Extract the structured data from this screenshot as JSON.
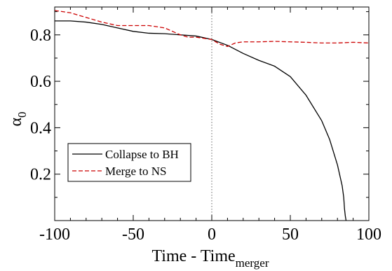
{
  "chart_data": {
    "type": "line",
    "title": "",
    "xlabel": "Time - Time",
    "xlabel_subscript": "merger",
    "ylabel": "α",
    "ylabel_subscript": "0",
    "xlim": [
      -100,
      100
    ],
    "ylim": [
      0,
      0.92
    ],
    "xticks": [
      -100,
      -50,
      0,
      50,
      100
    ],
    "xtick_labels": [
      "-100",
      "-50",
      "0",
      "50",
      "100"
    ],
    "yticks": [
      0.2,
      0.4,
      0.6,
      0.8
    ],
    "ytick_labels": [
      "0.2",
      "0.4",
      "0.6",
      "0.8"
    ],
    "grid": false,
    "legend_position": "bottom-left",
    "reference_line": {
      "x": 0,
      "style": "dotted"
    },
    "series": [
      {
        "name": "Collapse to BH",
        "color": "#000000",
        "style": "solid",
        "x": [
          -100,
          -90,
          -80,
          -70,
          -60,
          -50,
          -40,
          -30,
          -20,
          -10,
          0,
          10,
          20,
          30,
          40,
          50,
          60,
          70,
          75,
          80,
          83,
          84,
          84.5,
          85,
          85.5
        ],
        "y": [
          0.86,
          0.86,
          0.855,
          0.845,
          0.83,
          0.815,
          0.807,
          0.805,
          0.8,
          0.795,
          0.78,
          0.755,
          0.72,
          0.69,
          0.665,
          0.62,
          0.54,
          0.43,
          0.35,
          0.24,
          0.15,
          0.1,
          0.05,
          0.02,
          0.0
        ]
      },
      {
        "name": "Merge to NS",
        "color": "#cc0000",
        "style": "dashed",
        "x": [
          -100,
          -90,
          -80,
          -70,
          -60,
          -50,
          -40,
          -30,
          -25,
          -20,
          -15,
          -10,
          0,
          5,
          10,
          15,
          20,
          30,
          40,
          50,
          60,
          70,
          80,
          90,
          100
        ],
        "y": [
          0.905,
          0.895,
          0.875,
          0.855,
          0.84,
          0.84,
          0.84,
          0.83,
          0.815,
          0.8,
          0.79,
          0.79,
          0.78,
          0.76,
          0.75,
          0.765,
          0.77,
          0.77,
          0.772,
          0.77,
          0.768,
          0.765,
          0.765,
          0.768,
          0.765
        ]
      }
    ]
  }
}
